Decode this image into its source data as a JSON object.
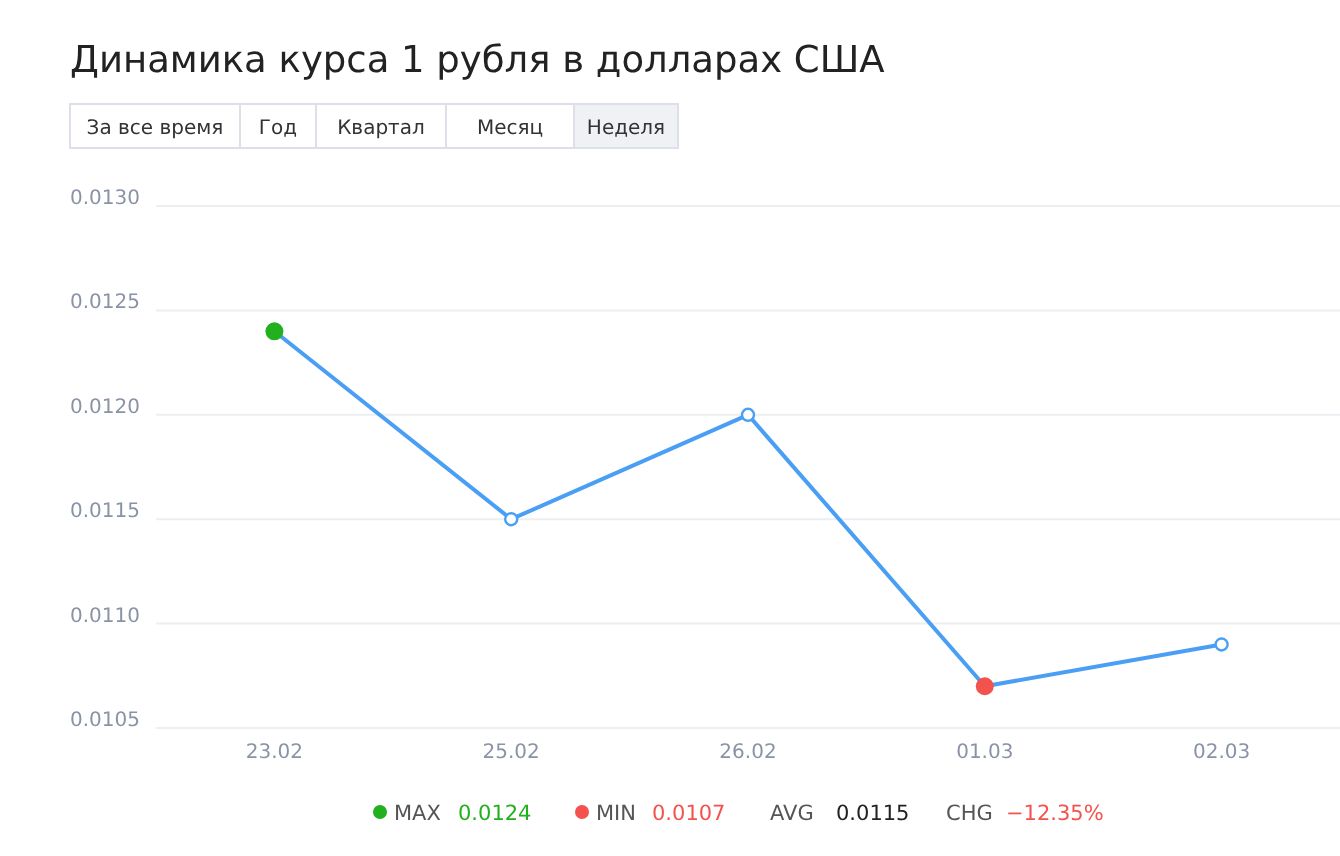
{
  "chart_data": {
    "type": "line",
    "title": "Динамика курса 1 рубля в долларах США",
    "categories": [
      "23.02",
      "25.02",
      "26.02",
      "01.03",
      "02.03"
    ],
    "series": [
      {
        "color": "#4a9ff5",
        "values": [
          0.0124,
          0.0115,
          0.012,
          0.0107,
          0.0109
        ],
        "colors": [
          "#22b01e",
          "#4a9ff5",
          "#4a9ff5",
          "#f4524d",
          "#4a9ff5"
        ]
      }
    ],
    "ylim": [
      0.0105,
      0.013
    ],
    "yticks": [
      {
        "value": 0.0105,
        "label": "0.0105"
      },
      {
        "value": 0.011,
        "label": "0.0110"
      },
      {
        "value": 0.0115,
        "label": "0.0115"
      },
      {
        "value": 0.012,
        "label": "0.0120"
      },
      {
        "value": 0.0125,
        "label": "0.0125"
      },
      {
        "value": 0.013,
        "label": "0.0130"
      }
    ],
    "grid": "y",
    "marker": "circle",
    "line_style": "solid",
    "annotations": [
      "За все время",
      "Год",
      "Квартал",
      "Месяц",
      "Неделя",
      "MAX",
      "0.0124",
      "MIN",
      "0.0107",
      "AVG",
      "0.0115",
      "CHG",
      "−12.35%"
    ]
  }
}
